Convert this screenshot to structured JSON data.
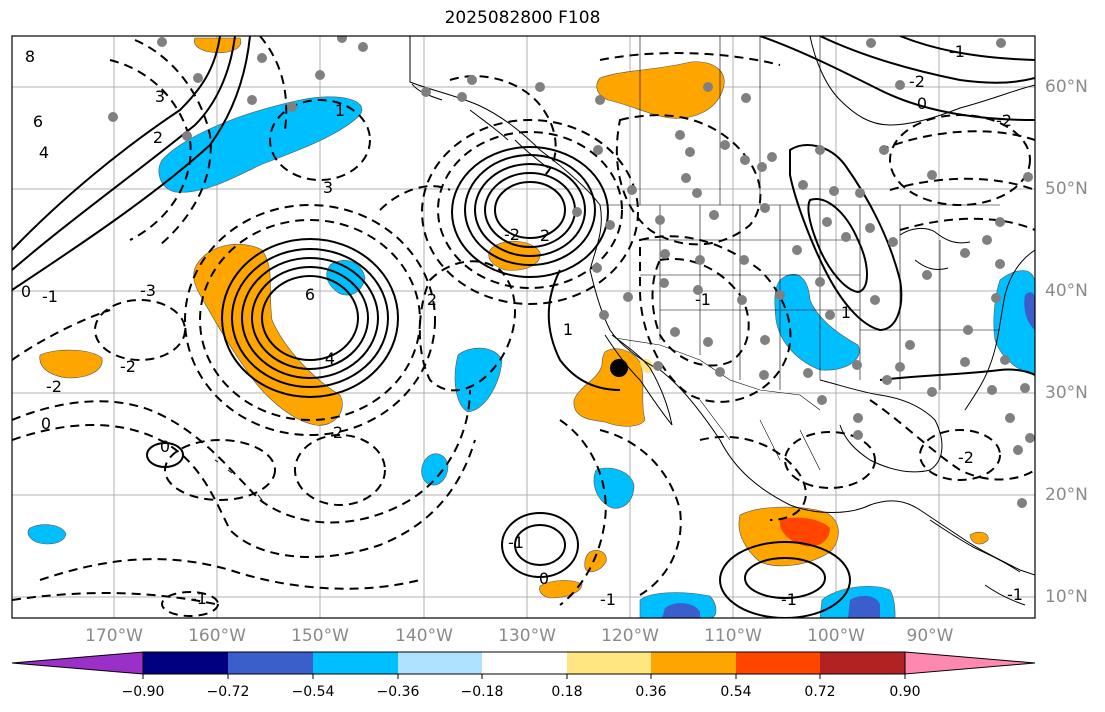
{
  "title": "2025082800 F108",
  "map": {
    "projection": "plate-carree",
    "lon_range": [
      -180,
      -80
    ],
    "lat_range": [
      8,
      65
    ],
    "lon_labels": [
      "170°W",
      "160°W",
      "150°W",
      "140°W",
      "130°W",
      "120°W",
      "110°W",
      "100°W",
      "90°W"
    ],
    "lat_labels": [
      "60°N",
      "50°N",
      "40°N",
      "30°N",
      "20°N",
      "10°N"
    ],
    "gridlines": true,
    "contour_labels": [
      "8",
      "6",
      "4",
      "3",
      "2",
      "1",
      "0",
      "-1",
      "-2",
      "-3",
      "6",
      "4",
      "3",
      "2",
      "0",
      "-2",
      "-1",
      "2",
      "0",
      "-1",
      "1",
      "2",
      "-2",
      "0",
      "-1",
      "-2",
      "-1",
      "0",
      "-1",
      "1",
      "-2",
      "-1",
      "-2",
      "-1"
    ],
    "highlight_marker": "black-dot"
  },
  "colorbar": {
    "orientation": "horizontal",
    "extend": "both",
    "tick_labels": [
      "−0.90",
      "−0.72",
      "−0.54",
      "−0.36",
      "−0.18",
      "0.18",
      "0.36",
      "0.54",
      "0.72",
      "0.90"
    ],
    "colors": [
      "#9a30c8",
      "#000080",
      "#3a5fcd",
      "#00bfff",
      "#aee2ff",
      "#ffffff",
      "#ffe680",
      "#ffa500",
      "#ff4500",
      "#b22222",
      "#ff88b0"
    ]
  },
  "colors": {
    "positive_fill": "#ffa500",
    "negative_fill": "#00bfff",
    "strong_positive_fill": "#ff4500",
    "strong_negative_fill": "#3a5fcd",
    "station_dot": "#808080"
  }
}
